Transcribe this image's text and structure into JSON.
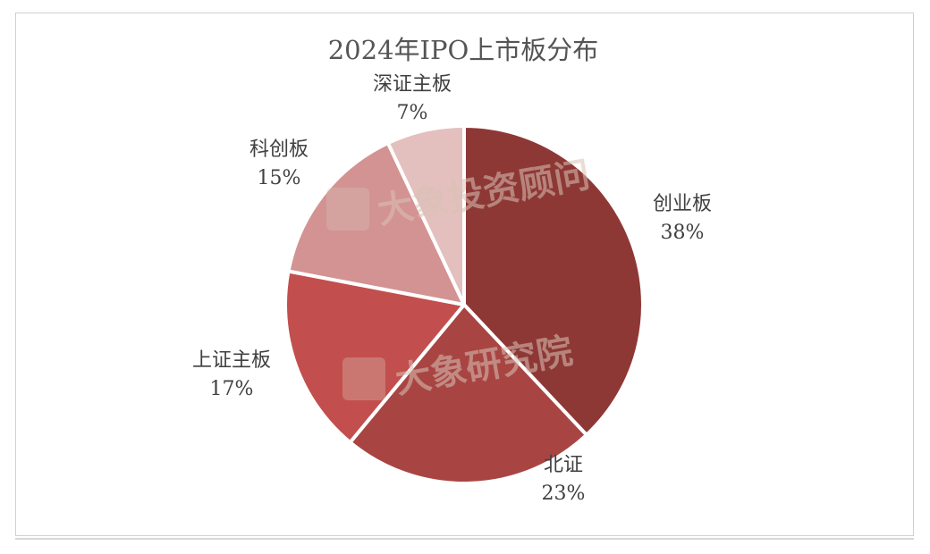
{
  "chart_data": {
    "type": "pie",
    "title": "2024年IPO上市板分布",
    "slices": [
      {
        "name": "创业板",
        "value": 38,
        "label": "38%",
        "color": "#8e3836"
      },
      {
        "name": "北证",
        "value": 23,
        "label": "23%",
        "color": "#a84543"
      },
      {
        "name": "上证主板",
        "value": 17,
        "label": "17%",
        "color": "#c24f4d"
      },
      {
        "name": "科创板",
        "value": 15,
        "label": "15%",
        "color": "#d39392"
      },
      {
        "name": "深证主板",
        "value": 7,
        "label": "7%",
        "color": "#e3bfbe"
      }
    ],
    "start_angle": "12 o'clock",
    "direction": "clockwise",
    "legend": "none"
  },
  "watermarks": [
    "大象投资顾问",
    "大象研究院"
  ]
}
